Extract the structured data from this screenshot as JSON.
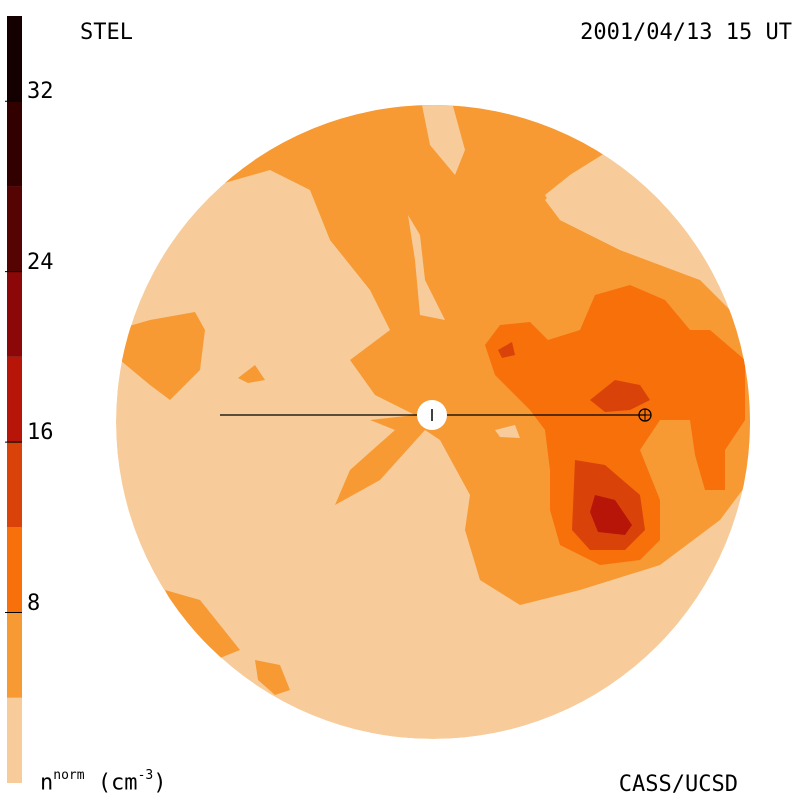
{
  "header": {
    "instrument": "STEL",
    "datetime": "2001/04/13 15 UT"
  },
  "footer": {
    "credit": "CASS/UCSD",
    "unit_base": "n",
    "unit_sup": "norm",
    "unit_paren": "(cm",
    "unit_exp": "-3",
    "unit_close": ")"
  },
  "chart_data": {
    "type": "heatmap",
    "title": "",
    "colorbar": {
      "ticks": [
        "8",
        "16",
        "24",
        "32"
      ],
      "tick_values": [
        8,
        16,
        24,
        32
      ],
      "range": [
        0,
        36
      ],
      "levels": [
        {
          "from": 0,
          "to": 4,
          "color": "#f7cc9a"
        },
        {
          "from": 4,
          "to": 8,
          "color": "#f79a33"
        },
        {
          "from": 8,
          "to": 12,
          "color": "#f7700a"
        },
        {
          "from": 12,
          "to": 16,
          "color": "#d9430a"
        },
        {
          "from": 16,
          "to": 20,
          "color": "#b71508"
        },
        {
          "from": 20,
          "to": 24,
          "color": "#8c0707"
        },
        {
          "from": 24,
          "to": 28,
          "color": "#560303"
        },
        {
          "from": 28,
          "to": 32,
          "color": "#330000"
        },
        {
          "from": 32,
          "to": 36,
          "color": "#140000"
        }
      ]
    },
    "markers": {
      "sun": "sun-symbol",
      "earth": "earth-symbol"
    }
  }
}
